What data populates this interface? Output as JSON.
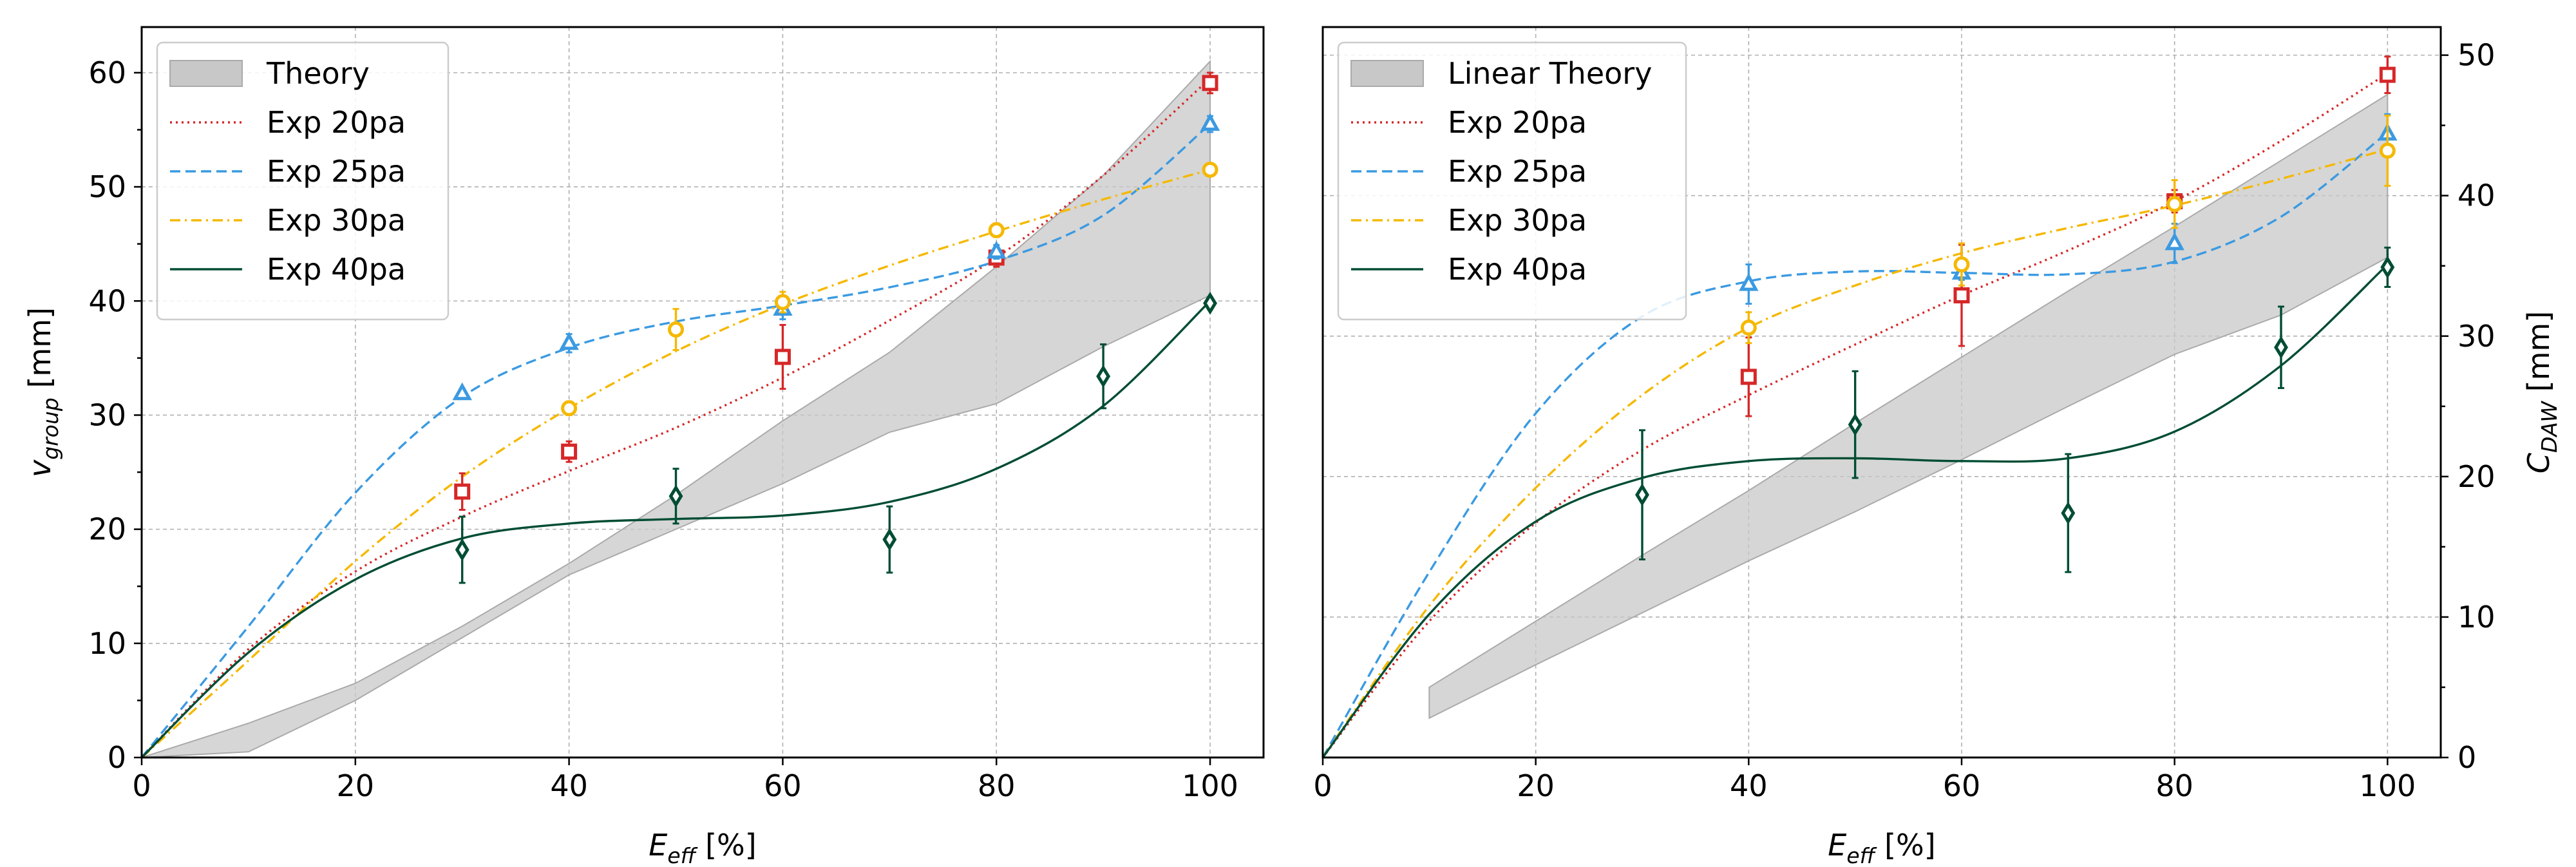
{
  "chart_data": [
    {
      "type": "line",
      "xlabel": "E",
      "xlabel_sub": "eff",
      "xlabel_unit": " [%]",
      "ylabel": "v",
      "ylabel_sub": "group",
      "ylabel_unit": " [mm]",
      "xlim": [
        0,
        105
      ],
      "ylim": [
        0,
        64
      ],
      "xticks": [
        0,
        20,
        40,
        60,
        80,
        100
      ],
      "yticks": [
        0,
        10,
        20,
        30,
        40,
        50,
        60
      ],
      "ytick_side": "left",
      "grid": true,
      "legend_position": "upper-left",
      "band": {
        "name": "Theory",
        "x": [
          0,
          10,
          20,
          30,
          40,
          50,
          60,
          70,
          80,
          90,
          100
        ],
        "lower": [
          0,
          0.5,
          5,
          10.5,
          16,
          20,
          24,
          28.5,
          31,
          36,
          40.5
        ],
        "upper": [
          0,
          3,
          6.5,
          11.5,
          17,
          23,
          29.5,
          35.5,
          43,
          51,
          61
        ]
      },
      "series": [
        {
          "name": "Exp 20pa",
          "color": "#d62728",
          "dash": "dotted",
          "marker": "square",
          "curve_x": [
            0,
            10,
            20,
            30,
            40,
            50,
            60,
            70,
            80,
            90,
            100
          ],
          "curve_y": [
            0,
            9.5,
            16.3,
            21.1,
            25.1,
            28.9,
            33.3,
            38.3,
            43.8,
            51,
            59.5
          ],
          "points": [
            {
              "x": 30,
              "y": 23.3,
              "err": 1.6
            },
            {
              "x": 40,
              "y": 26.8,
              "err": 0.9
            },
            {
              "x": 60,
              "y": 35.1,
              "err": 2.8
            },
            {
              "x": 80,
              "y": 43.8,
              "err": 0.8
            },
            {
              "x": 100,
              "y": 59.1,
              "err": 0.9
            }
          ]
        },
        {
          "name": "Exp 25pa",
          "color": "#3b9ae1",
          "dash": "dashed",
          "marker": "triangle",
          "curve_x": [
            0,
            10,
            20,
            30,
            40,
            50,
            60,
            70,
            80,
            90,
            100
          ],
          "curve_y": [
            0,
            11.5,
            23.2,
            31.6,
            35.9,
            38.2,
            39.6,
            41.2,
            43.5,
            47.5,
            55.5
          ],
          "points": [
            {
              "x": 30,
              "y": 31.9,
              "err": 0.3
            },
            {
              "x": 40,
              "y": 36.3,
              "err": 0.8
            },
            {
              "x": 60,
              "y": 39.3,
              "err": 0.9
            },
            {
              "x": 80,
              "y": 44.3,
              "err": 0.6
            },
            {
              "x": 100,
              "y": 55.5,
              "err": 0.7
            }
          ]
        },
        {
          "name": "Exp 30pa",
          "color": "#f5b800",
          "dash": "dashdot",
          "marker": "circle",
          "curve_x": [
            0,
            10,
            20,
            30,
            40,
            50,
            60,
            70,
            80,
            90,
            100
          ],
          "curve_y": [
            0,
            8.5,
            17.2,
            24.6,
            30.6,
            35.6,
            39.7,
            43.1,
            46.1,
            48.9,
            51.5
          ],
          "points": [
            {
              "x": 40,
              "y": 30.6,
              "err": 0.6
            },
            {
              "x": 50,
              "y": 37.5,
              "err": 1.8
            },
            {
              "x": 60,
              "y": 39.9,
              "err": 0.9
            },
            {
              "x": 80,
              "y": 46.2,
              "err": 0.6
            },
            {
              "x": 100,
              "y": 51.5,
              "err": 0.4
            }
          ]
        },
        {
          "name": "Exp 40pa",
          "color": "#004d33",
          "dash": "solid",
          "marker": "diamond",
          "curve_x": [
            0,
            10,
            20,
            30,
            40,
            50,
            60,
            70,
            80,
            90,
            100
          ],
          "curve_y": [
            0,
            9.2,
            15.6,
            19.2,
            20.5,
            20.9,
            21.2,
            22.4,
            25.3,
            30.8,
            40
          ],
          "points": [
            {
              "x": 30,
              "y": 18.2,
              "err": 2.9
            },
            {
              "x": 50,
              "y": 22.9,
              "err": 2.4
            },
            {
              "x": 70,
              "y": 19.1,
              "err": 2.9
            },
            {
              "x": 90,
              "y": 33.4,
              "err": 2.8
            },
            {
              "x": 100,
              "y": 39.8,
              "err": 0.5
            }
          ]
        }
      ]
    },
    {
      "type": "line",
      "xlabel": "E",
      "xlabel_sub": "eff",
      "xlabel_unit": " [%]",
      "ylabel": "C",
      "ylabel_sub": "DAW",
      "ylabel_unit": " [mm]",
      "xlim": [
        0,
        105
      ],
      "ylim": [
        0,
        52
      ],
      "xticks": [
        0,
        20,
        40,
        60,
        80,
        100
      ],
      "yticks": [
        0,
        10,
        20,
        30,
        40,
        50
      ],
      "ytick_side": "right",
      "grid": true,
      "legend_position": "upper-left",
      "band": {
        "name": "Linear Theory",
        "x": [
          10,
          20,
          30,
          40,
          50,
          60,
          70,
          80,
          90,
          100
        ],
        "lower": [
          2.8,
          6.6,
          10.3,
          14,
          17.5,
          21.2,
          25,
          28.7,
          31.5,
          35.6
        ],
        "upper": [
          5,
          9.7,
          14.4,
          19,
          23.8,
          28.5,
          33.2,
          37.8,
          42.5,
          47.2
        ]
      },
      "series": [
        {
          "name": "Exp 20pa",
          "color": "#d62728",
          "dash": "dotted",
          "marker": "square",
          "curve_x": [
            0,
            10,
            20,
            30,
            40,
            50,
            60,
            70,
            80,
            90,
            100
          ],
          "curve_y": [
            0,
            9.7,
            16.7,
            21.9,
            25.8,
            29.4,
            32.9,
            36.1,
            39.6,
            43.9,
            48.7
          ],
          "points": [
            {
              "x": 40,
              "y": 27.1,
              "err": 2.8
            },
            {
              "x": 60,
              "y": 32.9,
              "err": 3.6
            },
            {
              "x": 80,
              "y": 39.6,
              "err": 0.8
            },
            {
              "x": 100,
              "y": 48.6,
              "err": 1.3
            }
          ]
        },
        {
          "name": "Exp 25pa",
          "color": "#3b9ae1",
          "dash": "dashed",
          "marker": "triangle",
          "curve_x": [
            0,
            10,
            20,
            30,
            40,
            50,
            60,
            70,
            80,
            90,
            100
          ],
          "curve_y": [
            0,
            13.2,
            24.5,
            31.4,
            33.9,
            34.6,
            34.5,
            34.4,
            35.3,
            38.5,
            44.5
          ],
          "points": [
            {
              "x": 40,
              "y": 33.7,
              "err": 1.4
            },
            {
              "x": 60,
              "y": 34.5,
              "err": 0.5
            },
            {
              "x": 80,
              "y": 36.6,
              "err": 1.4
            },
            {
              "x": 100,
              "y": 44.4,
              "err": 1.4
            }
          ]
        },
        {
          "name": "Exp 30pa",
          "color": "#f5b800",
          "dash": "dashdot",
          "marker": "circle",
          "curve_x": [
            0,
            10,
            20,
            30,
            40,
            50,
            60,
            70,
            80,
            90,
            100
          ],
          "curve_y": [
            0,
            10.8,
            19.2,
            25.8,
            30.6,
            33.6,
            35.9,
            37.7,
            39.3,
            41.2,
            43.3
          ],
          "points": [
            {
              "x": 40,
              "y": 30.6,
              "err": 1.1
            },
            {
              "x": 60,
              "y": 35.1,
              "err": 1.5
            },
            {
              "x": 80,
              "y": 39.4,
              "err": 1.7
            },
            {
              "x": 100,
              "y": 43.2,
              "err": 2.5
            }
          ]
        },
        {
          "name": "Exp 40pa",
          "color": "#004d33",
          "dash": "solid",
          "marker": "diamond",
          "curve_x": [
            0,
            10,
            20,
            30,
            40,
            50,
            60,
            70,
            80,
            90,
            100
          ],
          "curve_y": [
            0,
            10.2,
            16.8,
            19.9,
            21.1,
            21.3,
            21.1,
            21.3,
            23.2,
            27.9,
            35.1
          ],
          "points": [
            {
              "x": 30,
              "y": 18.7,
              "err": 4.6
            },
            {
              "x": 50,
              "y": 23.7,
              "err": 3.8
            },
            {
              "x": 70,
              "y": 17.4,
              "err": 4.2
            },
            {
              "x": 90,
              "y": 29.2,
              "err": 2.9
            },
            {
              "x": 100,
              "y": 34.9,
              "err": 1.4
            }
          ]
        }
      ]
    }
  ]
}
